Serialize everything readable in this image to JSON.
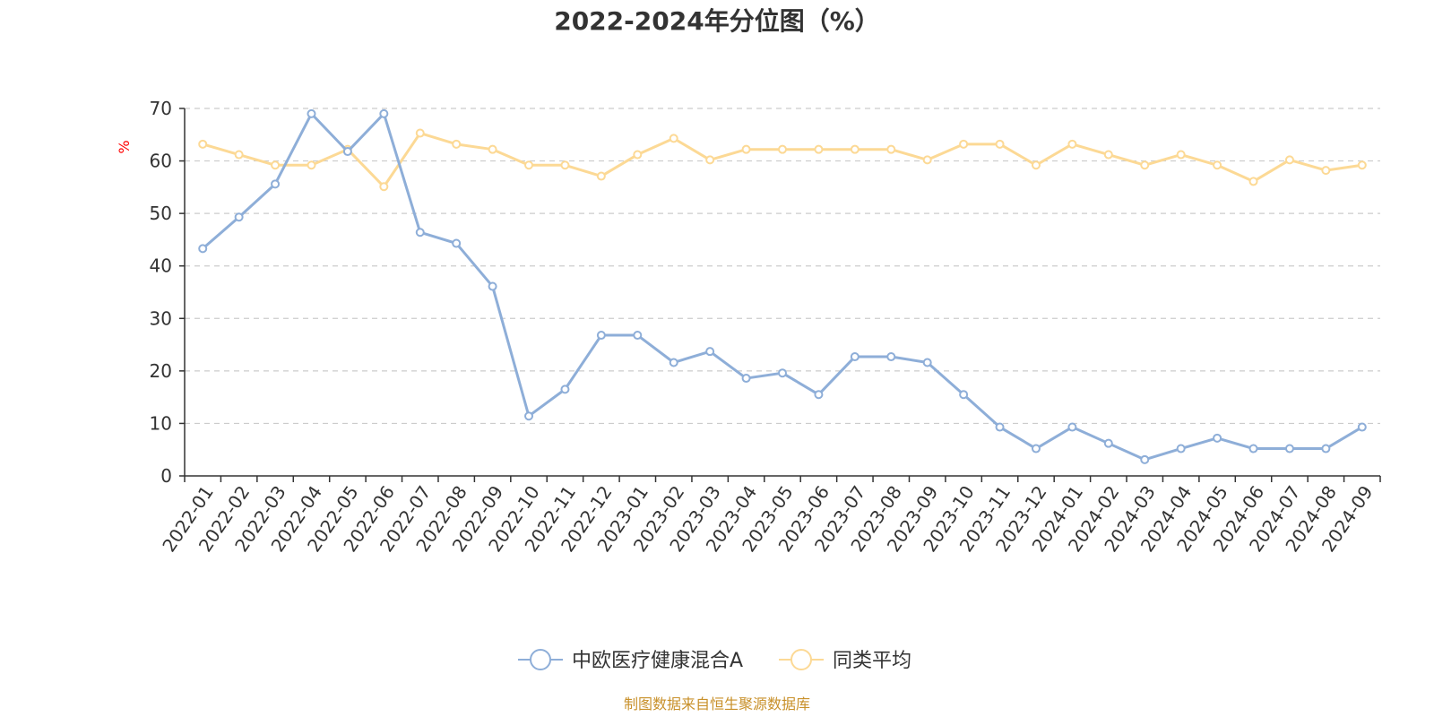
{
  "chart_data": {
    "type": "line",
    "title": "2022-2024年分位图（%）",
    "ylabel": "%",
    "xlabel": "",
    "ylim": [
      0,
      70
    ],
    "yticks": [
      0,
      10,
      20,
      30,
      40,
      50,
      60,
      70
    ],
    "grid": true,
    "legend_position": "bottom-center",
    "categories": [
      "2022-01",
      "2022-02",
      "2022-03",
      "2022-04",
      "2022-05",
      "2022-06",
      "2022-07",
      "2022-08",
      "2022-09",
      "2022-10",
      "2022-11",
      "2022-12",
      "2023-01",
      "2023-02",
      "2023-03",
      "2023-04",
      "2023-05",
      "2023-06",
      "2023-07",
      "2023-08",
      "2023-09",
      "2023-10",
      "2023-11",
      "2023-12",
      "2024-01",
      "2024-02",
      "2024-03",
      "2024-04",
      "2024-05",
      "2024-06",
      "2024-07",
      "2024-08",
      "2024-09"
    ],
    "series": [
      {
        "name": "中欧医疗健康混合A",
        "color": "#8eaed8",
        "values": [
          43.3,
          49.3,
          55.6,
          69.0,
          61.8,
          69.0,
          46.4,
          44.3,
          36.1,
          11.4,
          16.5,
          26.8,
          26.8,
          21.6,
          23.7,
          18.6,
          19.6,
          15.5,
          22.7,
          22.7,
          21.6,
          15.5,
          9.3,
          5.2,
          9.3,
          6.2,
          3.1,
          5.2,
          7.2,
          5.2,
          5.2,
          5.2,
          9.3
        ]
      },
      {
        "name": "同类平均",
        "color": "#fcd995",
        "values": [
          63.2,
          61.2,
          59.2,
          59.2,
          62.2,
          55.1,
          65.3,
          63.2,
          62.2,
          59.2,
          59.2,
          57.1,
          61.2,
          64.3,
          60.2,
          62.2,
          62.2,
          62.2,
          62.2,
          62.2,
          60.2,
          63.2,
          63.2,
          59.2,
          63.2,
          61.2,
          59.2,
          61.2,
          59.2,
          56.1,
          60.2,
          58.2,
          59.2
        ]
      }
    ]
  },
  "footer": {
    "source": "制图数据来自恒生聚源数据库"
  }
}
